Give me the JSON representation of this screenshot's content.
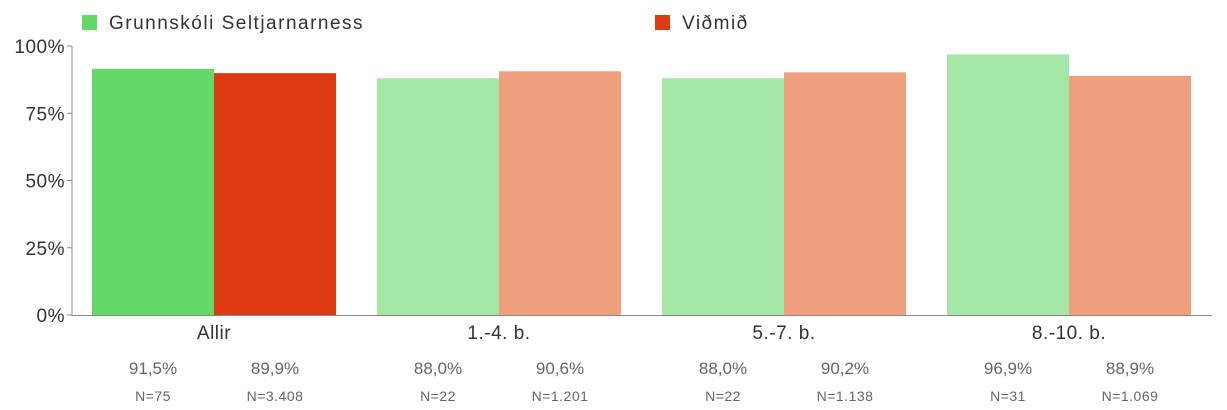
{
  "chart_data": {
    "type": "bar",
    "categories": [
      "Allir",
      "1.-4. b.",
      "5.-7. b.",
      "8.-10. b."
    ],
    "series": [
      {
        "name": "Grunnskóli Seltjarnarness",
        "color": "#64d96a",
        "faded_color": "#a3e8a6",
        "values": [
          91.5,
          88.0,
          88.0,
          96.9
        ],
        "value_labels": [
          "91,5%",
          "88,0%",
          "88,0%",
          "96,9%"
        ],
        "n_labels": [
          "N=75",
          "N=22",
          "N=22",
          "N=31"
        ]
      },
      {
        "name": "Viðmið",
        "color": "#dd3a12",
        "faded_color": "#eea07e",
        "values": [
          89.9,
          90.6,
          90.2,
          88.9
        ],
        "value_labels": [
          "89,9%",
          "90,6%",
          "90,2%",
          "88,9%"
        ],
        "n_labels": [
          "N=3.408",
          "N=1.201",
          "N=1.138",
          "N=1.069"
        ]
      }
    ],
    "highlighted_category": "Allir",
    "yticks": [
      "0%",
      "25%",
      "50%",
      "75%",
      "100%"
    ],
    "ylim": [
      0,
      100
    ],
    "legend_position": "top",
    "grid": false
  }
}
